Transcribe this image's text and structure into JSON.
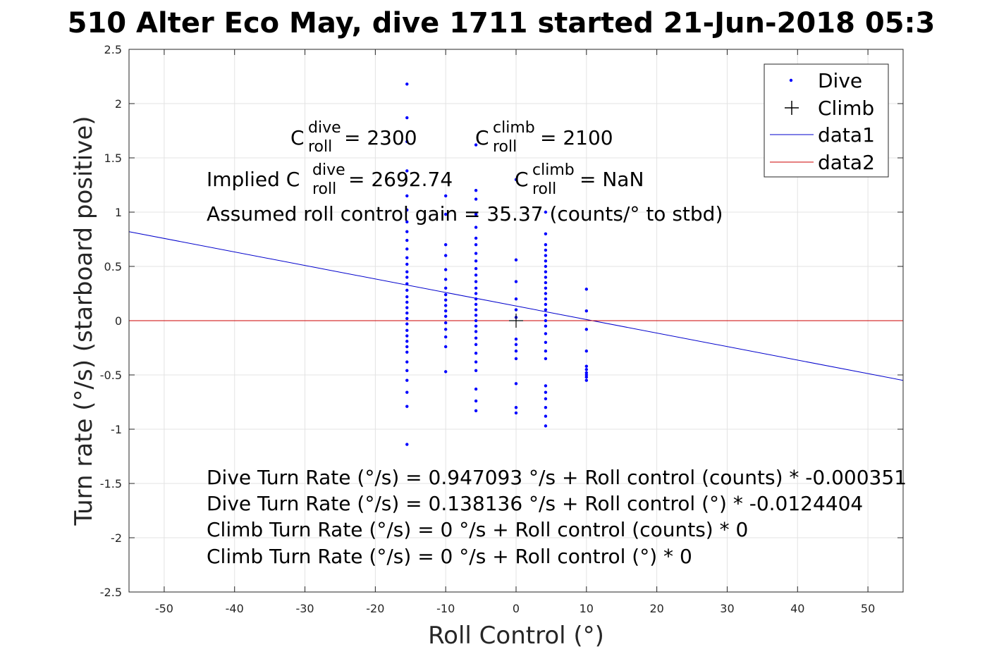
{
  "chart_data": {
    "type": "scatter",
    "title": "510 Alter Eco May, dive 1711 started 21-Jun-2018 05:3",
    "xlabel": "Roll Control (°)",
    "ylabel": "Turn rate (°/s) (starboard positive)",
    "xlim": [
      -55,
      55
    ],
    "ylim": [
      -2.5,
      2.5
    ],
    "grid": true,
    "x_ticks": [
      "-50",
      "-40",
      "-30",
      "-20",
      "-10",
      "0",
      "10",
      "20",
      "30",
      "40",
      "50"
    ],
    "y_ticks": [
      "2.5",
      "2",
      "1.5",
      "1",
      "0.5",
      "0",
      "-0.5",
      "-1",
      "-1.5",
      "-2",
      "-2.5"
    ],
    "legend_position": "top-right",
    "legend": [
      {
        "label": "Dive",
        "marker": "dot",
        "color": "#0000ff"
      },
      {
        "label": "Climb",
        "marker": "plus",
        "color": "#000000"
      },
      {
        "label": "data1",
        "marker": "line",
        "color": "#0000cc"
      },
      {
        "label": "data2",
        "marker": "line",
        "color": "#cc0000"
      }
    ],
    "series": [
      {
        "name": "Dive",
        "color": "#0000ff",
        "points": [
          {
            "x": -15.5,
            "y": 2.18
          },
          {
            "x": -15.5,
            "y": 1.87
          },
          {
            "x": -15.5,
            "y": 1.65
          },
          {
            "x": -15.5,
            "y": 1.38
          },
          {
            "x": -15.5,
            "y": 1.15
          },
          {
            "x": -15.5,
            "y": 1.02
          },
          {
            "x": -15.5,
            "y": 0.91
          },
          {
            "x": -15.5,
            "y": 0.82
          },
          {
            "x": -15.5,
            "y": 0.74
          },
          {
            "x": -15.5,
            "y": 0.66
          },
          {
            "x": -15.5,
            "y": 0.58
          },
          {
            "x": -15.5,
            "y": 0.52
          },
          {
            "x": -15.5,
            "y": 0.45
          },
          {
            "x": -15.5,
            "y": 0.4
          },
          {
            "x": -15.5,
            "y": 0.34
          },
          {
            "x": -15.5,
            "y": 0.28
          },
          {
            "x": -15.5,
            "y": 0.22
          },
          {
            "x": -15.5,
            "y": 0.17
          },
          {
            "x": -15.5,
            "y": 0.12
          },
          {
            "x": -15.5,
            "y": 0.07
          },
          {
            "x": -15.5,
            "y": 0.02
          },
          {
            "x": -15.5,
            "y": -0.03
          },
          {
            "x": -15.5,
            "y": -0.09
          },
          {
            "x": -15.5,
            "y": -0.14
          },
          {
            "x": -15.5,
            "y": -0.19
          },
          {
            "x": -15.5,
            "y": -0.24
          },
          {
            "x": -15.5,
            "y": -0.29
          },
          {
            "x": -15.5,
            "y": -0.38
          },
          {
            "x": -15.5,
            "y": -0.46
          },
          {
            "x": -15.5,
            "y": -0.55
          },
          {
            "x": -15.5,
            "y": -0.66
          },
          {
            "x": -15.5,
            "y": -0.79
          },
          {
            "x": -15.5,
            "y": -1.14
          },
          {
            "x": -10,
            "y": 1.15
          },
          {
            "x": -10,
            "y": 0.98
          },
          {
            "x": -10,
            "y": 0.7
          },
          {
            "x": -10,
            "y": 0.6
          },
          {
            "x": -10,
            "y": 0.47
          },
          {
            "x": -10,
            "y": 0.38
          },
          {
            "x": -10,
            "y": 0.3
          },
          {
            "x": -10,
            "y": 0.24
          },
          {
            "x": -10,
            "y": 0.19
          },
          {
            "x": -10,
            "y": 0.14
          },
          {
            "x": -10,
            "y": 0.09
          },
          {
            "x": -10,
            "y": 0.04
          },
          {
            "x": -10,
            "y": -0.02
          },
          {
            "x": -10,
            "y": -0.08
          },
          {
            "x": -10,
            "y": -0.15
          },
          {
            "x": -10,
            "y": -0.24
          },
          {
            "x": -10,
            "y": -0.47
          },
          {
            "x": -5.7,
            "y": 1.62
          },
          {
            "x": -5.7,
            "y": 1.2
          },
          {
            "x": -5.7,
            "y": 1.12
          },
          {
            "x": -5.7,
            "y": 0.98
          },
          {
            "x": -5.7,
            "y": 0.86
          },
          {
            "x": -5.7,
            "y": 0.76
          },
          {
            "x": -5.7,
            "y": 0.7
          },
          {
            "x": -5.7,
            "y": 0.62
          },
          {
            "x": -5.7,
            "y": 0.55
          },
          {
            "x": -5.7,
            "y": 0.48
          },
          {
            "x": -5.7,
            "y": 0.42
          },
          {
            "x": -5.7,
            "y": 0.36
          },
          {
            "x": -5.7,
            "y": 0.3
          },
          {
            "x": -5.7,
            "y": 0.25
          },
          {
            "x": -5.7,
            "y": 0.2
          },
          {
            "x": -5.7,
            "y": 0.15
          },
          {
            "x": -5.7,
            "y": 0.1
          },
          {
            "x": -5.7,
            "y": 0.05
          },
          {
            "x": -5.7,
            "y": 0.0
          },
          {
            "x": -5.7,
            "y": -0.05
          },
          {
            "x": -5.7,
            "y": -0.1
          },
          {
            "x": -5.7,
            "y": -0.16
          },
          {
            "x": -5.7,
            "y": -0.22
          },
          {
            "x": -5.7,
            "y": -0.3
          },
          {
            "x": -5.7,
            "y": -0.38
          },
          {
            "x": -5.7,
            "y": -0.46
          },
          {
            "x": -5.7,
            "y": -0.63
          },
          {
            "x": -5.7,
            "y": -0.74
          },
          {
            "x": -5.7,
            "y": -0.83
          },
          {
            "x": 0,
            "y": 1.3
          },
          {
            "x": 0,
            "y": 0.56
          },
          {
            "x": 0,
            "y": 0.36
          },
          {
            "x": 0,
            "y": 0.2
          },
          {
            "x": 0,
            "y": 0.1
          },
          {
            "x": 0,
            "y": 0.03
          },
          {
            "x": 0,
            "y": -0.17
          },
          {
            "x": 0,
            "y": -0.22
          },
          {
            "x": 0,
            "y": -0.28
          },
          {
            "x": 0,
            "y": -0.35
          },
          {
            "x": 0,
            "y": -0.58
          },
          {
            "x": 0,
            "y": -0.8
          },
          {
            "x": 0,
            "y": -0.85
          },
          {
            "x": 4.2,
            "y": 1.0
          },
          {
            "x": 4.2,
            "y": 0.8
          },
          {
            "x": 4.2,
            "y": 0.7
          },
          {
            "x": 4.2,
            "y": 0.65
          },
          {
            "x": 4.2,
            "y": 0.6
          },
          {
            "x": 4.2,
            "y": 0.55
          },
          {
            "x": 4.2,
            "y": 0.5
          },
          {
            "x": 4.2,
            "y": 0.45
          },
          {
            "x": 4.2,
            "y": 0.4
          },
          {
            "x": 4.2,
            "y": 0.35
          },
          {
            "x": 4.2,
            "y": 0.3
          },
          {
            "x": 4.2,
            "y": 0.25
          },
          {
            "x": 4.2,
            "y": 0.2
          },
          {
            "x": 4.2,
            "y": 0.15
          },
          {
            "x": 4.2,
            "y": 0.1
          },
          {
            "x": 4.2,
            "y": 0.05
          },
          {
            "x": 4.2,
            "y": 0.0
          },
          {
            "x": 4.2,
            "y": -0.05
          },
          {
            "x": 4.2,
            "y": -0.12
          },
          {
            "x": 4.2,
            "y": -0.2
          },
          {
            "x": 4.2,
            "y": -0.28
          },
          {
            "x": 4.2,
            "y": -0.35
          },
          {
            "x": 4.2,
            "y": -0.6
          },
          {
            "x": 4.2,
            "y": -0.66
          },
          {
            "x": 4.2,
            "y": -0.72
          },
          {
            "x": 4.2,
            "y": -0.8
          },
          {
            "x": 4.2,
            "y": -0.88
          },
          {
            "x": 4.2,
            "y": -0.97
          },
          {
            "x": 10,
            "y": 0.29
          },
          {
            "x": 10,
            "y": 0.09
          },
          {
            "x": 10,
            "y": -0.08
          },
          {
            "x": 10,
            "y": -0.28
          },
          {
            "x": 10,
            "y": -0.42
          },
          {
            "x": 10,
            "y": -0.45
          },
          {
            "x": 10,
            "y": -0.48
          },
          {
            "x": 10,
            "y": -0.5
          },
          {
            "x": 10,
            "y": -0.52
          },
          {
            "x": 10,
            "y": -0.55
          }
        ]
      },
      {
        "name": "Climb",
        "color": "#000000",
        "points": [
          {
            "x": 0,
            "y": 0
          }
        ]
      },
      {
        "name": "data1",
        "type": "line",
        "color": "#0000cc",
        "points": [
          {
            "x": -55,
            "y": 0.82
          },
          {
            "x": 55,
            "y": -0.55
          }
        ]
      },
      {
        "name": "data2",
        "type": "line",
        "color": "#cc0000",
        "points": [
          {
            "x": -55,
            "y": 0
          },
          {
            "x": 55,
            "y": 0
          }
        ]
      }
    ],
    "annotations": {
      "c_roll_dive_base": "C",
      "c_roll_dive_sup": "dive",
      "c_roll_dive_sub": "roll",
      "c_roll_dive_value": " = 2300",
      "c_roll_climb_base": "C",
      "c_roll_climb_sup": "climb",
      "c_roll_climb_sub": "roll",
      "c_roll_climb_value": " = 2100",
      "implied_prefix": "Implied C",
      "implied_dive_sup": "dive",
      "implied_dive_sub": "roll",
      "implied_dive_value": " = 2692.74",
      "implied_climb_base": "C",
      "implied_climb_sup": "climb",
      "implied_climb_sub": "roll",
      "implied_climb_value": " = NaN",
      "gain": "Assumed roll control gain = 35.37 (counts/° to stbd)",
      "fit1": "Dive Turn Rate (°/s) = 0.947093 °/s + Roll control (counts) * -0.000351",
      "fit2": "Dive Turn Rate (°/s) = 0.138136 °/s + Roll control (°) * -0.0124404",
      "fit3": "Climb Turn Rate (°/s) = 0 °/s + Roll control (counts) * 0",
      "fit4": "Climb Turn Rate (°/s) = 0 °/s + Roll control (°) * 0"
    }
  }
}
